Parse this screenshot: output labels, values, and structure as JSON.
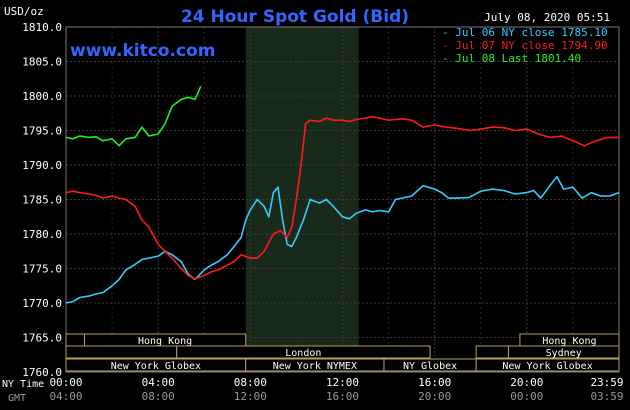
{
  "chart_data": {
    "type": "line",
    "title": "24 Hour Spot Gold (Bid)",
    "watermark": "www.kitco.com",
    "unit_label": "USD/oz",
    "date_label": "July 08, 2020 05:51",
    "ylim": [
      1760,
      1810
    ],
    "y_ticks": [
      "1810.0",
      "1805.0",
      "1800.0",
      "1795.0",
      "1790.0",
      "1785.0",
      "1780.0",
      "1775.0",
      "1770.0",
      "1765.0",
      "1760.0"
    ],
    "xlim": [
      0,
      24
    ],
    "x_ticks_ny": [
      "00:00",
      "04:00",
      "08:00",
      "12:00",
      "16:00",
      "20:00",
      "23:59"
    ],
    "x_ticks_gmt": [
      "04:00",
      "08:00",
      "12:00",
      "16:00",
      "20:00",
      "00:00",
      "03:59"
    ],
    "x_axis_label_ny": "NY Time",
    "x_axis_label_gmt": "GMT",
    "highlight_range_hours": [
      7.8,
      12.7
    ],
    "series": [
      {
        "name": "Jul 06 NY close 1785.10",
        "color": "#33ccff",
        "x": [
          0,
          0.3,
          0.6,
          1,
          1.3,
          1.6,
          2,
          2.3,
          2.6,
          3,
          3.3,
          3.6,
          4,
          4.3,
          4.6,
          5,
          5.3,
          5.6,
          6,
          6.3,
          6.6,
          7,
          7.3,
          7.6,
          7.8,
          8,
          8.3,
          8.6,
          8.8,
          9,
          9.2,
          9.4,
          9.6,
          9.8,
          10,
          10.3,
          10.6,
          11,
          11.3,
          11.6,
          12,
          12.3,
          12.6,
          13,
          13.3,
          13.6,
          14,
          14.3,
          14.6,
          15,
          15.5,
          16,
          16.3,
          16.6,
          17,
          17.5,
          18,
          18.5,
          19,
          19.5,
          20,
          20.3,
          20.6,
          21,
          21.3,
          21.6,
          22,
          22.4,
          22.8,
          23.2,
          23.6,
          24
        ],
        "y": [
          1770.0,
          1770.2,
          1770.8,
          1771.0,
          1771.3,
          1771.5,
          1772.5,
          1773.4,
          1774.8,
          1775.6,
          1776.3,
          1776.5,
          1776.8,
          1777.5,
          1777.0,
          1776.0,
          1774.2,
          1773.4,
          1774.8,
          1775.5,
          1776.0,
          1777.0,
          1778.2,
          1779.5,
          1782.0,
          1783.5,
          1785.0,
          1784.0,
          1782.5,
          1786.0,
          1786.8,
          1782.0,
          1778.5,
          1778.2,
          1779.5,
          1782.0,
          1785.0,
          1784.5,
          1785.0,
          1784.0,
          1782.5,
          1782.2,
          1783.0,
          1783.5,
          1783.2,
          1783.4,
          1783.2,
          1785.0,
          1785.2,
          1785.5,
          1787.0,
          1786.5,
          1786.0,
          1785.2,
          1785.2,
          1785.3,
          1786.2,
          1786.5,
          1786.3,
          1785.8,
          1786.0,
          1786.3,
          1785.2,
          1787.0,
          1788.3,
          1786.5,
          1786.8,
          1785.2,
          1786.0,
          1785.5,
          1785.5,
          1786.0
        ]
      },
      {
        "name": "Jul 07 NY close 1794.90",
        "color": "#ff1a1a",
        "x": [
          0,
          0.3,
          0.6,
          1,
          1.3,
          1.6,
          2,
          2.3,
          2.6,
          3,
          3.3,
          3.6,
          4,
          4.3,
          4.6,
          5,
          5.3,
          5.6,
          6,
          6.3,
          6.6,
          7,
          7.3,
          7.6,
          8,
          8.3,
          8.6,
          9,
          9.3,
          9.6,
          9.8,
          10,
          10.2,
          10.4,
          10.6,
          11,
          11.3,
          11.6,
          12,
          12.3,
          12.6,
          13,
          13.3,
          13.6,
          14,
          14.3,
          14.6,
          15,
          15.5,
          16,
          16.5,
          17,
          17.5,
          18,
          18.5,
          19,
          19.5,
          20,
          20.5,
          21,
          21.5,
          22,
          22.5,
          23,
          23.5,
          24
        ],
        "y": [
          1786.0,
          1786.2,
          1786.0,
          1785.8,
          1785.6,
          1785.2,
          1785.5,
          1785.2,
          1785.0,
          1784.0,
          1782.0,
          1781.0,
          1778.5,
          1777.5,
          1776.5,
          1775.0,
          1774.0,
          1773.5,
          1774.0,
          1774.5,
          1774.8,
          1775.5,
          1776.0,
          1777.0,
          1776.5,
          1776.5,
          1777.5,
          1780.0,
          1780.5,
          1779.5,
          1781.0,
          1785.0,
          1790.0,
          1796.0,
          1796.5,
          1796.3,
          1796.8,
          1796.5,
          1796.5,
          1796.3,
          1796.6,
          1796.8,
          1797.0,
          1796.8,
          1796.5,
          1796.6,
          1796.7,
          1796.5,
          1795.5,
          1795.8,
          1795.5,
          1795.3,
          1795.0,
          1795.2,
          1795.5,
          1795.4,
          1795.0,
          1795.2,
          1794.5,
          1794.0,
          1794.2,
          1793.5,
          1792.8,
          1793.5,
          1794.0,
          1794.0
        ]
      },
      {
        "name": "Jul 08 Last 1801.40",
        "color": "#22ee22",
        "x": [
          0,
          0.3,
          0.6,
          1,
          1.3,
          1.6,
          2,
          2.3,
          2.6,
          3,
          3.3,
          3.6,
          4,
          4.3,
          4.6,
          5,
          5.3,
          5.6,
          5.85
        ],
        "y": [
          1794.0,
          1793.8,
          1794.2,
          1794.0,
          1794.1,
          1793.5,
          1793.8,
          1792.8,
          1793.8,
          1794.0,
          1795.5,
          1794.2,
          1794.5,
          1796.0,
          1798.5,
          1799.5,
          1799.8,
          1799.5,
          1801.4
        ]
      }
    ],
    "sessions": [
      {
        "label": "Hong Kong",
        "start": 0.8,
        "end": 7.8,
        "row": 0
      },
      {
        "label": "London",
        "start": 4.8,
        "end": 15.8,
        "row": 1
      },
      {
        "label": "New York Globex",
        "start": 0,
        "end": 7.8,
        "row": 2
      },
      {
        "label": "New York NYMEX",
        "start": 7.8,
        "end": 13.8,
        "row": 2
      },
      {
        "label": "NY Globex",
        "start": 13.8,
        "end": 17.8,
        "row": 2
      },
      {
        "label": "Hong Kong",
        "start": 19.7,
        "end": 24,
        "row": 0
      },
      {
        "label": "Sydney",
        "start": 19.2,
        "end": 24,
        "row": 1
      },
      {
        "label": "New York Globex",
        "start": 17.8,
        "end": 24,
        "row": 2
      },
      {
        "label": "",
        "start": 0,
        "end": 0.8,
        "row": 0
      },
      {
        "label": "",
        "start": 0,
        "end": 4.8,
        "row": 1
      },
      {
        "label": "",
        "start": 17.8,
        "end": 19.2,
        "row": 1
      }
    ]
  }
}
